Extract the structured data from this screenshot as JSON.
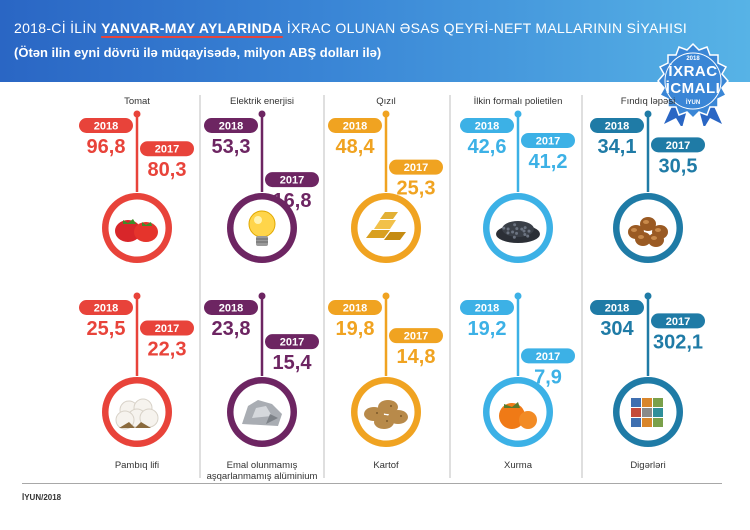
{
  "header": {
    "title_pre": "2018-Cİ İLİN ",
    "title_highlight": "YANVAR-MAY AYLARINDA",
    "title_post": " İXRAC OLUNAN ƏSAS QEYRİ-NEFT MALLARININ SİYAHISI",
    "subtitle": "(Ötən ilin eyni dövrü ilə müqayisədə, milyon ABŞ dolları ilə)"
  },
  "badge": {
    "year": "2018",
    "line1": "İXRAC",
    "line2": "İCMALI",
    "month": "İYUN"
  },
  "footer": {
    "text": "İYUN/2018"
  },
  "colors": {
    "red": "#e8433a",
    "purple": "#6d2562",
    "orange": "#f0a321",
    "lightblue": "#3cb1e6",
    "teal": "#1f7ba6"
  },
  "chart_data": {
    "type": "table",
    "year_labels": [
      "2018",
      "2017"
    ],
    "items": [
      {
        "label": "Tomat",
        "v2018": "96,8",
        "v2017": "80,3",
        "color": "#e8433a",
        "icon": "tomato-icon"
      },
      {
        "label": "Elektrik enerjisi",
        "v2018": "53,3",
        "v2017": "16,8",
        "color": "#6d2562",
        "icon": "light-bulb-icon"
      },
      {
        "label": "Qızıl",
        "v2018": "48,4",
        "v2017": "25,3",
        "color": "#f0a321",
        "icon": "gold-bars-icon"
      },
      {
        "label": "İlkin formalı polietilen",
        "v2018": "42,6",
        "v2017": "41,2",
        "color": "#3cb1e6",
        "icon": "polyethylene-granules-icon"
      },
      {
        "label": "Fındıq ləpəsi",
        "v2018": "34,1",
        "v2017": "30,5",
        "color": "#1f7ba6",
        "icon": "hazelnut-icon"
      },
      {
        "label": "Pambıq lifi",
        "v2018": "25,5",
        "v2017": "22,3",
        "color": "#e8433a",
        "icon": "cotton-icon"
      },
      {
        "label": "Emal olunmamış aşqarlanmamış alüminium",
        "v2018": "23,8",
        "v2017": "15,4",
        "color": "#6d2562",
        "icon": "aluminium-icon"
      },
      {
        "label": "Kartof",
        "v2018": "19,8",
        "v2017": "14,8",
        "color": "#f0a321",
        "icon": "potato-icon"
      },
      {
        "label": "Xurma",
        "v2018": "19,2",
        "v2017": "7,9",
        "color": "#3cb1e6",
        "icon": "persimmon-icon"
      },
      {
        "label": "Digərləri",
        "v2018": "304",
        "v2017": "302,1",
        "color": "#1f7ba6",
        "icon": "containers-icon"
      }
    ]
  }
}
